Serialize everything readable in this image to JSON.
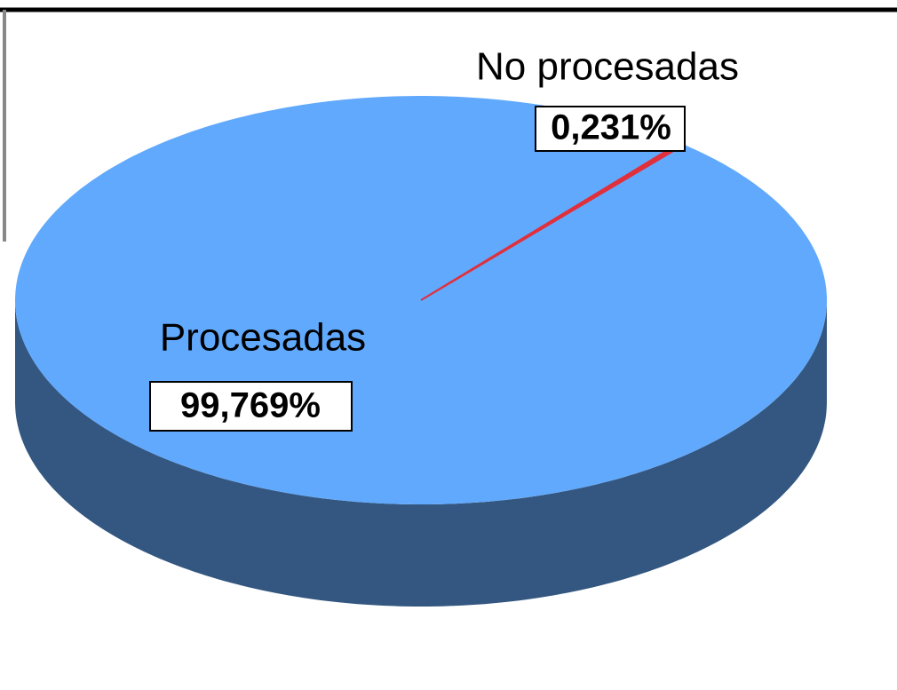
{
  "chart_data": {
    "type": "pie3d",
    "categories": [
      "Procesadas",
      "No procesadas"
    ],
    "values": [
      99.769,
      0.231
    ],
    "value_labels": [
      "99,769%",
      "0,231%"
    ],
    "colors": [
      "#61a9fd",
      "#e0303c"
    ],
    "side_colors": [
      "#335780",
      "#8a1c24"
    ]
  }
}
